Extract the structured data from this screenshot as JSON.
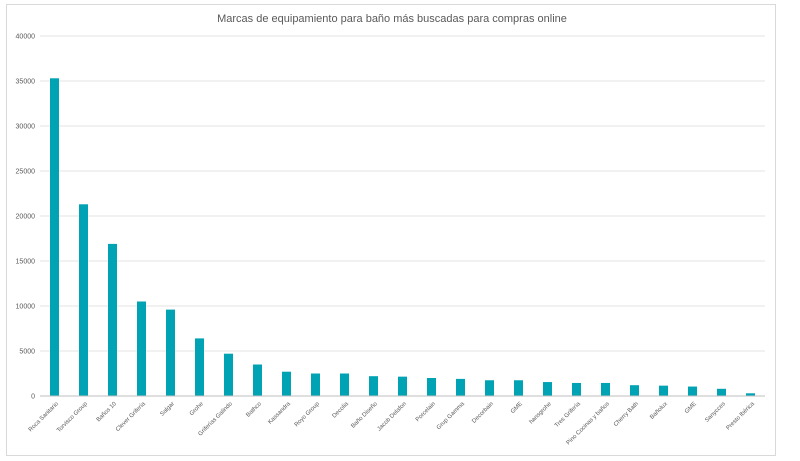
{
  "chart_data": {
    "type": "bar",
    "title": "Marcas de equipamiento para baño más buscadas para compras online",
    "xlabel": "",
    "ylabel": "",
    "ylim": [
      0,
      40000
    ],
    "yticks": [
      "0",
      "5000",
      "10000",
      "15000",
      "20000",
      "25000",
      "30000",
      "35000",
      "40000"
    ],
    "grid": true,
    "legend": "none",
    "bar_color": "#00A3B4",
    "categories": [
      "Roca Sanitario",
      "Torvisco Group",
      "Baños 10",
      "Clever Grifería",
      "Salgar",
      "Grohe",
      "Griferías Galindo",
      "Bathco",
      "Kassandra",
      "Royo Group",
      "Decolia",
      "Baño Diseño",
      "Jacob Delafon",
      "Porcelain",
      "Grup Gamma",
      "Decorbain",
      "GME",
      "hansgrohe",
      "Tres Grifería",
      "Pino Cocinas y baños",
      "Cherry Bath",
      "Bañolux",
      "GME",
      "Sanycces",
      "Presto Ibérica"
    ],
    "values": [
      35300,
      21300,
      16900,
      10500,
      9600,
      6400,
      4700,
      3500,
      2700,
      2500,
      2500,
      2200,
      2150,
      2000,
      1900,
      1750,
      1750,
      1550,
      1450,
      1450,
      1200,
      1150,
      1050,
      800,
      300
    ]
  }
}
